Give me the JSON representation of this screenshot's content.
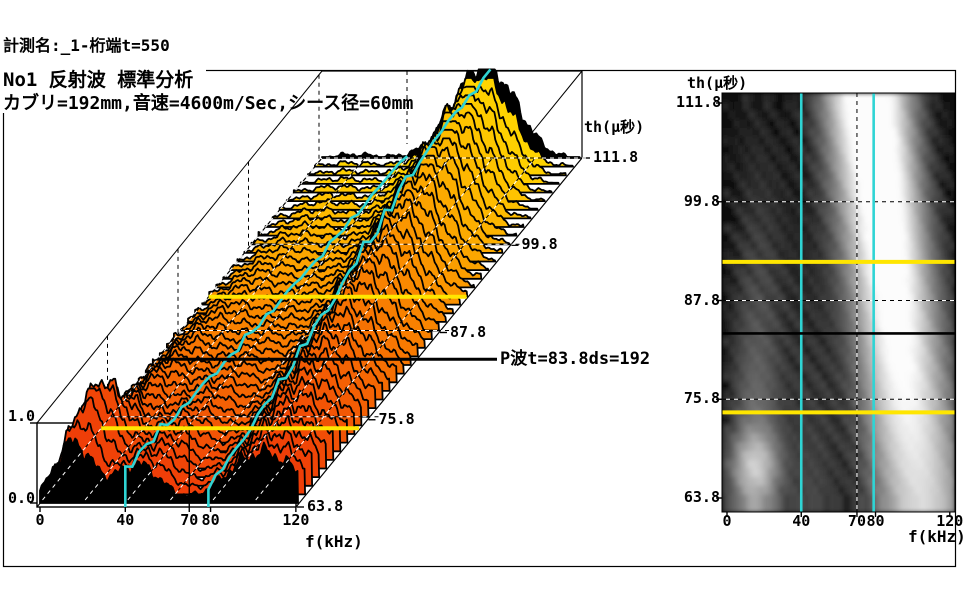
{
  "header": {
    "measurement": "計測名:_1-桁端t=550",
    "title": "No1 反射波 標準分析",
    "subtitle": "カブリ=192mm,音速=4600m/Sec,シース径=60mm"
  },
  "colors": {
    "cyan_cursor": "#2fd4d4",
    "yellow_cursor": "#ffe600",
    "black_cursor": "#000000",
    "waterfall_front": "#ee3a08",
    "waterfall_mid": "#f98500",
    "waterfall_back": "#ffd800",
    "edge_rows": "#000000",
    "frame": "#000000",
    "background": "#ffffff"
  },
  "chart_data": [
    {
      "type": "waterfall_3d",
      "name": "reflected-wave-standard-analysis-waterfall",
      "f_axis_title": "f(kHz)",
      "t_axis_title": "th(μ秒)",
      "f_ticks": [
        0,
        40,
        70,
        80,
        120
      ],
      "f_tick_labels": [
        "0",
        "40",
        "70",
        "80",
        "120"
      ],
      "f_range": [
        0,
        121
      ],
      "t_ticks": [
        111.8,
        99.8,
        87.8,
        75.8,
        63.8
      ],
      "t_tick_labels": [
        "111.8",
        "99.8",
        "87.8",
        "75.8",
        "63.8"
      ],
      "t_range": [
        63.8,
        111.8
      ],
      "amp_ticks": [
        1.0,
        0.0
      ],
      "amp_tick_labels": [
        "1.0",
        "0.0"
      ],
      "rows": 41,
      "annotation": "P波t=83.8ds=192",
      "cursors": {
        "cyan_f": [
          40,
          79
        ],
        "black_f": 70,
        "yellow_t": [
          92.5,
          74.2
        ],
        "black_t": 83.8
      },
      "gridlines_f": [
        0,
        20,
        40,
        60,
        80,
        100
      ],
      "gridlines_t": [
        75.8,
        87.8,
        99.8,
        111.8
      ],
      "surface_model": {
        "comment": "amplitude(f,p) , p = (t-63.8)/48 , sum of gaussian components",
        "components": [
          {
            "kind": "linear",
            "a": [
              0.58,
              0.42
            ],
            "c": [
              105,
              -31
            ],
            "s": [
              16,
              -3
            ]
          },
          {
            "kind": "linear",
            "a": [
              0.02,
              0.2
            ],
            "c": [
              90,
              0
            ],
            "s": [
              10,
              0
            ]
          },
          {
            "kind": "burst",
            "base": 0.45,
            "burst": 0.7,
            "bp": 0.09,
            "bs": 0.055,
            "decay": 1.8,
            "floor": 0.04,
            "c": 15,
            "s": 8.5
          },
          {
            "kind": "poly",
            "a": [
              0.44,
              -0.78,
              0.36
            ],
            "c": [
              46,
              0
            ],
            "s": [
              10.5,
              0
            ]
          },
          {
            "kind": "poly",
            "a": [
              0.06,
              0.3,
              -0.36
            ],
            "c": [
              27,
              0
            ],
            "s": [
              9,
              0
            ]
          }
        ],
        "ripple": [
          [
            0.5,
            0.55,
            2.1
          ],
          [
            0.35,
            1.15,
            3.7
          ],
          [
            0.25,
            2.35,
            5.3
          ]
        ],
        "ripple_scale": 0.11
      }
    },
    {
      "type": "heatmap",
      "name": "reflected-wave-spectrogram",
      "f_axis_title": "f(kHz)",
      "t_axis_title": "th(μ秒)",
      "f_ticks": [
        0,
        40,
        70,
        80,
        120
      ],
      "f_tick_labels": [
        "0",
        "40",
        "70",
        "80",
        "120"
      ],
      "t_ticks": [
        111.8,
        99.8,
        87.8,
        75.8,
        63.8
      ],
      "t_tick_labels": [
        "111.8",
        "99.8",
        "87.8",
        "75.8",
        "63.8"
      ],
      "t_range": [
        63.8,
        111.8
      ],
      "f_range": [
        0,
        123
      ],
      "cursors": {
        "cyan_f": [
          40,
          79
        ],
        "black_f": 70,
        "yellow_t": [
          92.5,
          74.2
        ],
        "black_t": 83.8
      },
      "gridlines_t": [
        99.8,
        87.8,
        75.8
      ],
      "heat_weights": [
        1.35,
        1.1,
        0.7,
        0.26,
        0.3
      ],
      "gamma": 0.62
    }
  ]
}
